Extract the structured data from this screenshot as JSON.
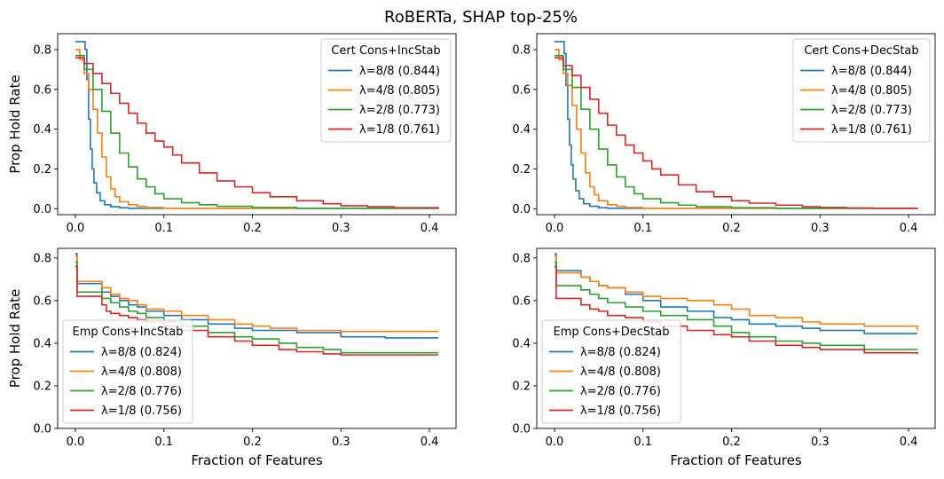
{
  "figure": {
    "suptitle": "RoBERTa, SHAP top-25%",
    "colors": {
      "8/8": "#1f77b4",
      "4/8": "#ff7f0e",
      "2/8": "#2ca02c",
      "1/8": "#d62728"
    }
  },
  "chart_data": [
    {
      "type": "line",
      "title": "",
      "xlabel": "",
      "ylabel": "Prop Hold Rate",
      "xlim": [
        -0.02,
        0.43
      ],
      "ylim": [
        -0.03,
        0.88
      ],
      "xticks": [
        "0.0",
        "0.1",
        "0.2",
        "0.3",
        "0.4"
      ],
      "xtick_values": [
        0,
        0.1,
        0.2,
        0.3,
        0.4
      ],
      "yticks": [
        "0.0",
        "0.2",
        "0.4",
        "0.6",
        "0.8"
      ],
      "ytick_values": [
        0,
        0.2,
        0.4,
        0.6,
        0.8
      ],
      "legend_title": "Cert Cons+IncStab",
      "legend_position": "upper-right",
      "series": [
        {
          "name": "λ=8/8 (0.844)",
          "color": "#1f77b4",
          "x": [
            0,
            0.005,
            0.009,
            0.011,
            0.013,
            0.015,
            0.017,
            0.019,
            0.021,
            0.024,
            0.028,
            0.033,
            0.04,
            0.05,
            0.06,
            0.41
          ],
          "y": [
            0.84,
            0.84,
            0.84,
            0.8,
            0.65,
            0.45,
            0.3,
            0.2,
            0.13,
            0.08,
            0.04,
            0.02,
            0.01,
            0.005,
            0.002,
            0.0
          ]
        },
        {
          "name": "λ=4/8 (0.805)",
          "color": "#ff7f0e",
          "x": [
            0,
            0.005,
            0.01,
            0.015,
            0.02,
            0.025,
            0.03,
            0.035,
            0.04,
            0.045,
            0.05,
            0.06,
            0.07,
            0.08,
            0.1,
            0.41
          ],
          "y": [
            0.8,
            0.75,
            0.68,
            0.6,
            0.5,
            0.38,
            0.26,
            0.16,
            0.1,
            0.06,
            0.035,
            0.02,
            0.012,
            0.006,
            0.002,
            0.0
          ]
        },
        {
          "name": "λ=2/8 (0.773)",
          "color": "#2ca02c",
          "x": [
            0,
            0.01,
            0.02,
            0.03,
            0.04,
            0.05,
            0.06,
            0.07,
            0.08,
            0.09,
            0.1,
            0.12,
            0.14,
            0.16,
            0.2,
            0.25,
            0.41
          ],
          "y": [
            0.77,
            0.7,
            0.6,
            0.49,
            0.38,
            0.28,
            0.21,
            0.15,
            0.11,
            0.075,
            0.05,
            0.03,
            0.02,
            0.012,
            0.006,
            0.002,
            0.0
          ]
        },
        {
          "name": "λ=1/8 (0.761)",
          "color": "#d62728",
          "x": [
            0,
            0.01,
            0.02,
            0.03,
            0.04,
            0.05,
            0.06,
            0.07,
            0.08,
            0.09,
            0.1,
            0.11,
            0.12,
            0.14,
            0.16,
            0.18,
            0.2,
            0.22,
            0.25,
            0.28,
            0.3,
            0.33,
            0.36,
            0.41
          ],
          "y": [
            0.76,
            0.73,
            0.68,
            0.63,
            0.58,
            0.53,
            0.48,
            0.43,
            0.38,
            0.34,
            0.31,
            0.27,
            0.23,
            0.18,
            0.14,
            0.11,
            0.08,
            0.06,
            0.04,
            0.025,
            0.015,
            0.01,
            0.005,
            0.003
          ]
        }
      ]
    },
    {
      "type": "line",
      "title": "",
      "xlabel": "",
      "ylabel": "",
      "xlim": [
        -0.02,
        0.43
      ],
      "ylim": [
        -0.03,
        0.88
      ],
      "xticks": [
        "0.0",
        "0.1",
        "0.2",
        "0.3",
        "0.4"
      ],
      "xtick_values": [
        0,
        0.1,
        0.2,
        0.3,
        0.4
      ],
      "yticks": [
        "0.0",
        "0.2",
        "0.4",
        "0.6",
        "0.8"
      ],
      "ytick_values": [
        0,
        0.2,
        0.4,
        0.6,
        0.8
      ],
      "legend_title": "Cert Cons+DecStab",
      "legend_position": "upper-right",
      "series": [
        {
          "name": "λ=8/8 (0.844)",
          "color": "#1f77b4",
          "x": [
            0,
            0.005,
            0.009,
            0.011,
            0.013,
            0.015,
            0.017,
            0.019,
            0.021,
            0.024,
            0.028,
            0.033,
            0.04,
            0.05,
            0.06,
            0.41
          ],
          "y": [
            0.84,
            0.84,
            0.84,
            0.78,
            0.62,
            0.45,
            0.32,
            0.22,
            0.15,
            0.09,
            0.05,
            0.025,
            0.012,
            0.005,
            0.002,
            0.0
          ]
        },
        {
          "name": "λ=4/8 (0.805)",
          "color": "#ff7f0e",
          "x": [
            0,
            0.005,
            0.01,
            0.015,
            0.02,
            0.025,
            0.03,
            0.035,
            0.04,
            0.045,
            0.05,
            0.06,
            0.07,
            0.08,
            0.1,
            0.41
          ],
          "y": [
            0.8,
            0.75,
            0.68,
            0.62,
            0.52,
            0.4,
            0.28,
            0.18,
            0.11,
            0.07,
            0.04,
            0.02,
            0.012,
            0.006,
            0.002,
            0.0
          ]
        },
        {
          "name": "λ=2/8 (0.773)",
          "color": "#2ca02c",
          "x": [
            0,
            0.01,
            0.02,
            0.03,
            0.04,
            0.05,
            0.06,
            0.07,
            0.08,
            0.09,
            0.1,
            0.12,
            0.14,
            0.16,
            0.2,
            0.25,
            0.41
          ],
          "y": [
            0.77,
            0.7,
            0.61,
            0.5,
            0.4,
            0.3,
            0.22,
            0.16,
            0.11,
            0.075,
            0.05,
            0.03,
            0.018,
            0.01,
            0.005,
            0.002,
            0.0
          ]
        },
        {
          "name": "λ=1/8 (0.761)",
          "color": "#d62728",
          "x": [
            0,
            0.01,
            0.02,
            0.03,
            0.04,
            0.05,
            0.06,
            0.07,
            0.08,
            0.09,
            0.1,
            0.11,
            0.12,
            0.14,
            0.16,
            0.18,
            0.2,
            0.22,
            0.25,
            0.28,
            0.3,
            0.33,
            0.36,
            0.41
          ],
          "y": [
            0.76,
            0.72,
            0.67,
            0.61,
            0.55,
            0.48,
            0.42,
            0.37,
            0.32,
            0.28,
            0.24,
            0.2,
            0.17,
            0.12,
            0.085,
            0.06,
            0.04,
            0.028,
            0.018,
            0.01,
            0.006,
            0.004,
            0.002,
            0.001
          ]
        }
      ]
    },
    {
      "type": "line",
      "title": "",
      "xlabel": "Fraction of Features",
      "ylabel": "Prop Hold Rate",
      "xlim": [
        -0.02,
        0.43
      ],
      "ylim": [
        0.0,
        0.845
      ],
      "xticks": [
        "0.0",
        "0.1",
        "0.2",
        "0.3",
        "0.4"
      ],
      "xtick_values": [
        0,
        0.1,
        0.2,
        0.3,
        0.4
      ],
      "yticks": [
        "0.0",
        "0.2",
        "0.4",
        "0.6",
        "0.8"
      ],
      "ytick_values": [
        0,
        0.2,
        0.4,
        0.6,
        0.8
      ],
      "legend_title": "Emp Cons+IncStab",
      "legend_position": "lower-left",
      "series": [
        {
          "name": "λ=8/8 (0.824)",
          "color": "#1f77b4",
          "x": [
            0,
            0.002,
            0.004,
            0.02,
            0.03,
            0.04,
            0.05,
            0.06,
            0.07,
            0.08,
            0.1,
            0.12,
            0.15,
            0.18,
            0.2,
            0.25,
            0.3,
            0.35,
            0.41
          ],
          "y": [
            0.82,
            0.68,
            0.68,
            0.68,
            0.64,
            0.62,
            0.6,
            0.58,
            0.57,
            0.55,
            0.53,
            0.51,
            0.49,
            0.47,
            0.46,
            0.45,
            0.43,
            0.425,
            0.425
          ]
        },
        {
          "name": "λ=4/8 (0.808)",
          "color": "#ff7f0e",
          "x": [
            0,
            0.002,
            0.004,
            0.02,
            0.03,
            0.04,
            0.05,
            0.06,
            0.07,
            0.08,
            0.1,
            0.12,
            0.15,
            0.18,
            0.2,
            0.22,
            0.25,
            0.3,
            0.41
          ],
          "y": [
            0.81,
            0.69,
            0.69,
            0.69,
            0.66,
            0.63,
            0.61,
            0.6,
            0.58,
            0.56,
            0.55,
            0.53,
            0.51,
            0.49,
            0.48,
            0.47,
            0.46,
            0.455,
            0.455
          ]
        },
        {
          "name": "λ=2/8 (0.776)",
          "color": "#2ca02c",
          "x": [
            0,
            0.002,
            0.004,
            0.02,
            0.03,
            0.04,
            0.05,
            0.06,
            0.07,
            0.08,
            0.1,
            0.12,
            0.15,
            0.18,
            0.2,
            0.23,
            0.25,
            0.28,
            0.3,
            0.41
          ],
          "y": [
            0.78,
            0.64,
            0.64,
            0.64,
            0.61,
            0.59,
            0.57,
            0.55,
            0.54,
            0.52,
            0.5,
            0.48,
            0.45,
            0.43,
            0.42,
            0.4,
            0.38,
            0.37,
            0.355,
            0.355
          ]
        },
        {
          "name": "λ=1/8 (0.756)",
          "color": "#d62728",
          "x": [
            0,
            0.002,
            0.004,
            0.02,
            0.03,
            0.035,
            0.04,
            0.05,
            0.06,
            0.07,
            0.08,
            0.1,
            0.12,
            0.15,
            0.18,
            0.2,
            0.23,
            0.25,
            0.28,
            0.3,
            0.41
          ],
          "y": [
            0.76,
            0.62,
            0.62,
            0.62,
            0.58,
            0.55,
            0.54,
            0.53,
            0.52,
            0.51,
            0.5,
            0.48,
            0.46,
            0.43,
            0.41,
            0.39,
            0.37,
            0.36,
            0.35,
            0.345,
            0.345
          ]
        }
      ]
    },
    {
      "type": "line",
      "title": "",
      "xlabel": "Fraction of Features",
      "ylabel": "",
      "xlim": [
        -0.02,
        0.43
      ],
      "ylim": [
        0.0,
        0.845
      ],
      "xticks": [
        "0.0",
        "0.1",
        "0.2",
        "0.3",
        "0.4"
      ],
      "xtick_values": [
        0,
        0.1,
        0.2,
        0.3,
        0.4
      ],
      "yticks": [
        "0.0",
        "0.2",
        "0.4",
        "0.6",
        "0.8"
      ],
      "ytick_values": [
        0,
        0.2,
        0.4,
        0.6,
        0.8
      ],
      "legend_title": "Emp Cons+DecStab",
      "legend_position": "lower-left",
      "series": [
        {
          "name": "λ=8/8 (0.824)",
          "color": "#1f77b4",
          "x": [
            0,
            0.002,
            0.004,
            0.02,
            0.03,
            0.04,
            0.05,
            0.06,
            0.08,
            0.1,
            0.12,
            0.15,
            0.18,
            0.2,
            0.22,
            0.25,
            0.28,
            0.3,
            0.35,
            0.41
          ],
          "y": [
            0.82,
            0.74,
            0.74,
            0.74,
            0.71,
            0.69,
            0.67,
            0.66,
            0.63,
            0.6,
            0.57,
            0.55,
            0.52,
            0.51,
            0.49,
            0.48,
            0.47,
            0.46,
            0.445,
            0.445
          ]
        },
        {
          "name": "λ=4/8 (0.808)",
          "color": "#ff7f0e",
          "x": [
            0,
            0.002,
            0.004,
            0.02,
            0.03,
            0.04,
            0.05,
            0.06,
            0.08,
            0.1,
            0.12,
            0.15,
            0.18,
            0.2,
            0.22,
            0.25,
            0.28,
            0.3,
            0.35,
            0.41
          ],
          "y": [
            0.81,
            0.73,
            0.73,
            0.73,
            0.71,
            0.69,
            0.67,
            0.66,
            0.64,
            0.62,
            0.61,
            0.6,
            0.58,
            0.56,
            0.53,
            0.52,
            0.5,
            0.49,
            0.48,
            0.46
          ]
        },
        {
          "name": "λ=2/8 (0.776)",
          "color": "#2ca02c",
          "x": [
            0,
            0.002,
            0.004,
            0.02,
            0.03,
            0.04,
            0.05,
            0.06,
            0.08,
            0.1,
            0.12,
            0.15,
            0.18,
            0.2,
            0.22,
            0.25,
            0.28,
            0.3,
            0.35,
            0.41
          ],
          "y": [
            0.78,
            0.67,
            0.67,
            0.67,
            0.65,
            0.63,
            0.61,
            0.59,
            0.57,
            0.55,
            0.53,
            0.51,
            0.48,
            0.45,
            0.43,
            0.41,
            0.4,
            0.39,
            0.37,
            0.37
          ]
        },
        {
          "name": "λ=1/8 (0.756)",
          "color": "#d62728",
          "x": [
            0,
            0.002,
            0.004,
            0.02,
            0.03,
            0.04,
            0.05,
            0.06,
            0.08,
            0.1,
            0.12,
            0.15,
            0.18,
            0.2,
            0.22,
            0.25,
            0.28,
            0.3,
            0.35,
            0.41
          ],
          "y": [
            0.76,
            0.61,
            0.61,
            0.61,
            0.58,
            0.56,
            0.55,
            0.53,
            0.52,
            0.5,
            0.48,
            0.46,
            0.44,
            0.43,
            0.41,
            0.39,
            0.38,
            0.37,
            0.355,
            0.35
          ]
        }
      ]
    }
  ]
}
